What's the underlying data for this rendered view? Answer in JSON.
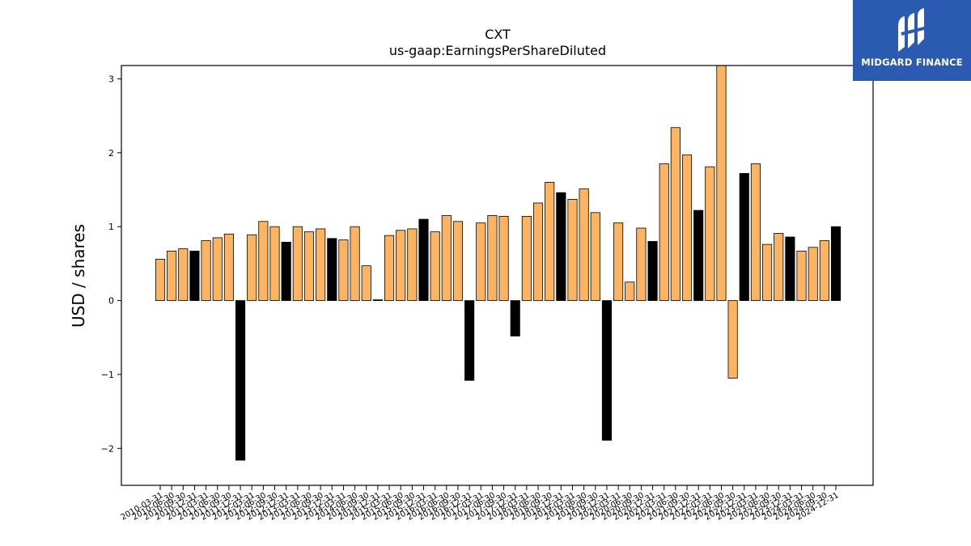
{
  "logo": {
    "text": "MIDGARD FINANCE",
    "icon": "midgard-logo-mark"
  },
  "colors": {
    "positive": "#fdb462",
    "negative": "#000000",
    "edge": "#000000",
    "logo_bg": "#2a5bb0"
  },
  "chart_data": {
    "type": "bar",
    "title": "CXT",
    "subtitle": "us-gaap:EarningsPerShareDiluted",
    "xlabel": "",
    "ylabel": "USD / shares",
    "ylim": [
      -2.5,
      3.18
    ],
    "yticks": [
      -2,
      -1,
      0,
      1,
      2,
      3
    ],
    "ytick_labels": [
      "−2",
      "−1",
      "0",
      "1",
      "2",
      "3"
    ],
    "grid": false,
    "legend": "none",
    "x_tick_labels_visible": [
      "2010-03-31",
      "2024-12-31"
    ],
    "categories": [
      "2010-03-31",
      "2010-06-30",
      "2010-09-30",
      "2010-12-31",
      "2011-03-31",
      "2011-06-30",
      "2011-09-30",
      "2011-12-31",
      "2012-03-31",
      "2012-06-30",
      "2012-09-30",
      "2012-12-31",
      "2013-03-31",
      "2013-06-30",
      "2013-09-30",
      "2013-12-31",
      "2014-03-31",
      "2014-06-30",
      "2014-09-30",
      "2014-12-31",
      "2015-03-31",
      "2015-06-30",
      "2015-09-30",
      "2015-12-31",
      "2016-03-31",
      "2016-06-30",
      "2016-09-30",
      "2016-12-31",
      "2017-03-31",
      "2017-06-30",
      "2017-09-30",
      "2017-12-31",
      "2018-03-31",
      "2018-06-30",
      "2018-09-30",
      "2018-12-31",
      "2019-03-31",
      "2019-06-30",
      "2019-09-30",
      "2019-12-31",
      "2020-03-31",
      "2020-06-30",
      "2020-09-30",
      "2020-12-31",
      "2021-03-31",
      "2021-06-30",
      "2021-09-30",
      "2021-12-31",
      "2022-03-31",
      "2022-06-30",
      "2022-09-30",
      "2022-12-31",
      "2023-03-31",
      "2023-06-30",
      "2023-09-30",
      "2023-12-31",
      "2024-03-31",
      "2024-06-30",
      "2024-09-30",
      "2024-12-31"
    ],
    "values": [
      0.56,
      0.67,
      0.7,
      0.67,
      0.81,
      0.85,
      0.9,
      -2.16,
      0.89,
      1.07,
      1.0,
      0.79,
      1.0,
      0.93,
      0.97,
      0.84,
      0.82,
      1.0,
      0.47,
      0.01,
      0.88,
      0.95,
      0.97,
      1.1,
      0.93,
      1.15,
      1.07,
      -1.08,
      1.05,
      1.15,
      1.14,
      -0.48,
      1.14,
      1.32,
      1.6,
      1.46,
      1.37,
      1.51,
      1.19,
      -1.89,
      1.05,
      0.25,
      0.98,
      0.8,
      1.85,
      2.34,
      1.97,
      1.22,
      1.81,
      3.18,
      -1.05,
      1.72,
      1.85,
      0.76,
      0.91,
      0.86,
      0.67,
      0.72,
      0.81,
      1.0
    ],
    "bar_colors": [
      "positive",
      "positive",
      "positive",
      "negative",
      "positive",
      "positive",
      "positive",
      "negative",
      "positive",
      "positive",
      "positive",
      "negative",
      "positive",
      "positive",
      "positive",
      "negative",
      "positive",
      "positive",
      "positive",
      "negative",
      "positive",
      "positive",
      "positive",
      "negative",
      "positive",
      "positive",
      "positive",
      "negative",
      "positive",
      "positive",
      "positive",
      "negative",
      "positive",
      "positive",
      "positive",
      "negative",
      "positive",
      "positive",
      "positive",
      "negative",
      "positive",
      "positive",
      "positive",
      "negative",
      "positive",
      "positive",
      "positive",
      "negative",
      "positive",
      "positive",
      "positive",
      "negative",
      "positive",
      "positive",
      "positive",
      "negative",
      "positive",
      "positive",
      "positive",
      "negative"
    ]
  }
}
